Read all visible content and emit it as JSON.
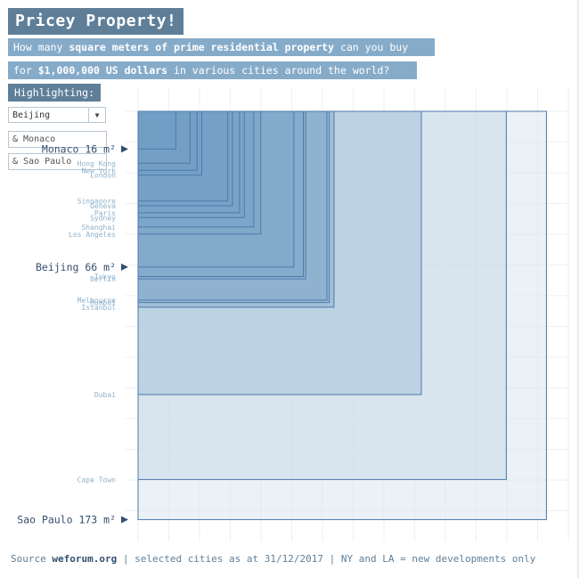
{
  "header": {
    "title": "Pricey Property!",
    "line1_pre": "How many ",
    "line1_bold": "square meters of prime residential property",
    "line1_post": " can you buy",
    "line2_pre": "for ",
    "line2_bold": "$1,000,000 US dollars",
    "line2_post": " in various cities around the world?"
  },
  "controls": {
    "highlighting_label": "Highlighting:",
    "dropdown_value": "Beijing",
    "input1_value": "& Monaco",
    "input2_value": "& Sao Paulo"
  },
  "footer": {
    "prefix": "Source ",
    "source": "weforum.org",
    "suffix": " | selected cities as at 31/12/2017 | NY and LA = new developments only"
  },
  "chart_data": {
    "type": "nested-squares",
    "unit": "m²",
    "cities": [
      {
        "name": "Monaco",
        "value": 16,
        "highlight": true
      },
      {
        "name": "Hong Kong",
        "value": 22
      },
      {
        "name": "New York",
        "value": 25
      },
      {
        "name": "London",
        "value": 27
      },
      {
        "name": "Singapore",
        "value": 38
      },
      {
        "name": "Geneva",
        "value": 40
      },
      {
        "name": "Paris",
        "value": 43
      },
      {
        "name": "Sydney",
        "value": 45
      },
      {
        "name": "Shanghai",
        "value": 49
      },
      {
        "name": "Los Angeles",
        "value": 52
      },
      {
        "name": "Beijing",
        "value": 66,
        "highlight": true
      },
      {
        "name": "Tokyo",
        "value": 70
      },
      {
        "name": "Berlin",
        "value": 71
      },
      {
        "name": "Melbourne",
        "value": 80
      },
      {
        "name": "Mumbai",
        "value": 81
      },
      {
        "name": "Istanbul",
        "value": 83
      },
      {
        "name": "Dubai",
        "value": 120
      },
      {
        "name": "Cape Town",
        "value": 156
      },
      {
        "name": "Sao Paulo",
        "value": 173,
        "highlight": true
      }
    ],
    "colors": {
      "fill_dark": "#6f9cc3",
      "fill_light": "#dbe6ef",
      "stroke": "#4d7aab",
      "highlight_text": "#33506e",
      "label_text": "#8fb2cc",
      "grid": "#edf0f2"
    }
  }
}
